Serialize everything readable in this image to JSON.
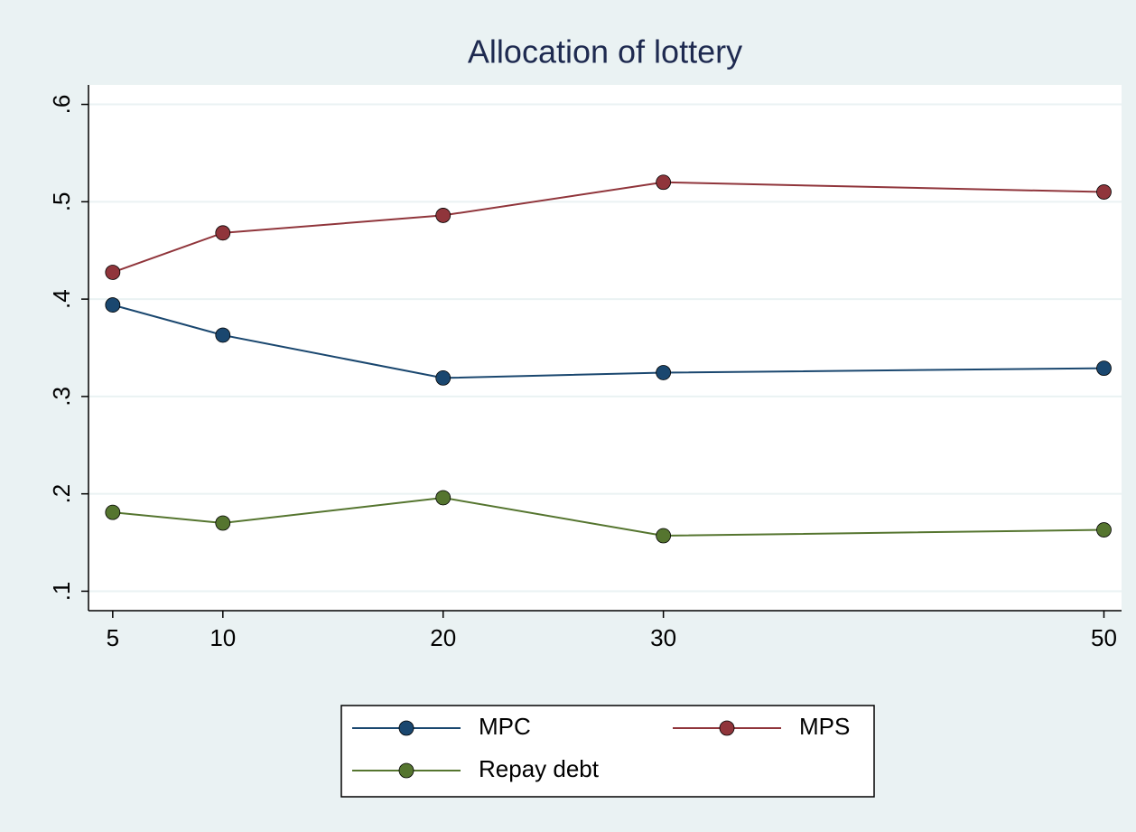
{
  "chart_data": {
    "type": "line",
    "title": "Allocation of lottery",
    "x": [
      5,
      10,
      20,
      30,
      50
    ],
    "series": [
      {
        "name": "MPC",
        "color": "#1a476f",
        "values": [
          0.394,
          0.363,
          0.319,
          0.3245,
          0.329
        ]
      },
      {
        "name": "MPS",
        "color": "#90353b",
        "values": [
          0.4275,
          0.468,
          0.486,
          0.52,
          0.51
        ]
      },
      {
        "name": "Repay debt",
        "color": "#55752f",
        "values": [
          0.181,
          0.17,
          0.196,
          0.157,
          0.163
        ]
      }
    ],
    "xlim": [
      3.9,
      50.8
    ],
    "xticks": [
      5,
      10,
      20,
      30,
      50
    ],
    "ylim": [
      0.08,
      0.62
    ],
    "yticks": [
      {
        "value": 0.1,
        "label": ".1"
      },
      {
        "value": 0.2,
        "label": ".2"
      },
      {
        "value": 0.3,
        "label": ".3"
      },
      {
        "value": 0.4,
        "label": ".4"
      },
      {
        "value": 0.5,
        "label": ".5"
      },
      {
        "value": 0.6,
        "label": ".6"
      }
    ],
    "grid": true,
    "legend": "bottom"
  }
}
